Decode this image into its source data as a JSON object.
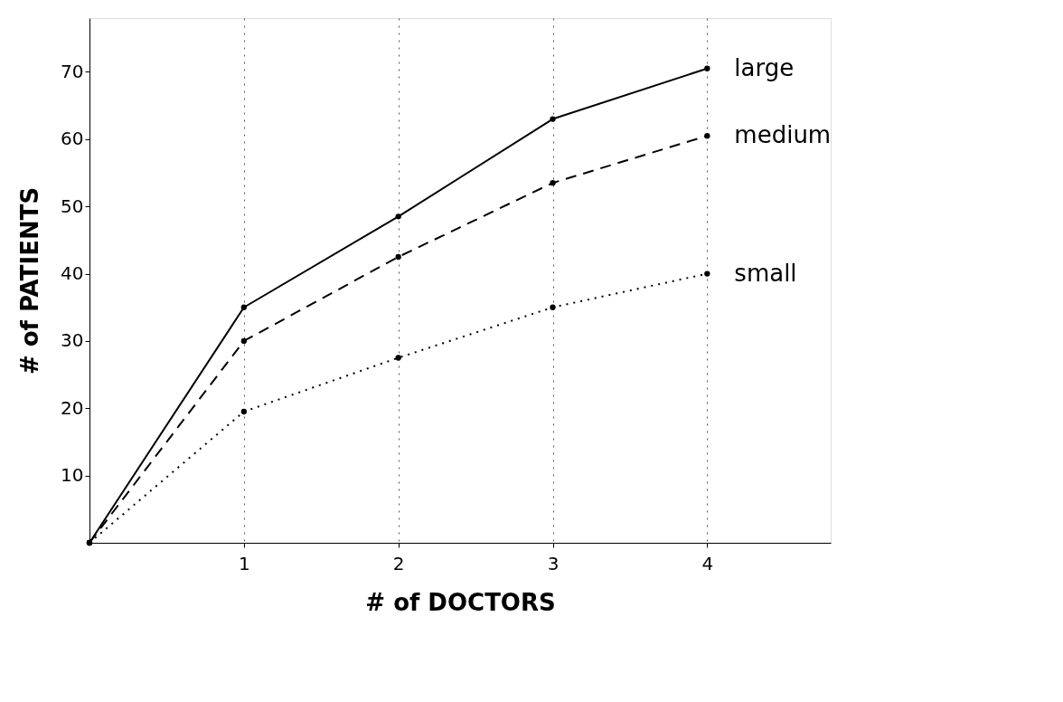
{
  "chart_data": {
    "type": "line",
    "xlabel": "# of DOCTORS",
    "ylabel": "# of PATIENTS",
    "x": [
      0,
      1,
      2,
      3,
      4
    ],
    "series": [
      {
        "name": "large",
        "color": "#000000",
        "line_style": "solid",
        "values": [
          0,
          35,
          48.5,
          63,
          70.5
        ]
      },
      {
        "name": "medium",
        "color": "#000000",
        "line_style": "dashed",
        "values": [
          0,
          30,
          42.5,
          53.5,
          60.5
        ]
      },
      {
        "name": "small",
        "color": "#000000",
        "line_style": "dotted",
        "values": [
          0,
          19.5,
          27.5,
          35,
          40
        ]
      }
    ],
    "xlim": [
      0,
      4.8
    ],
    "ylim": [
      0,
      78
    ],
    "xticks": [
      1,
      2,
      3,
      4
    ],
    "yticks": [
      10,
      20,
      30,
      40,
      50,
      60,
      70
    ],
    "grid": "x",
    "marker": "circle"
  }
}
